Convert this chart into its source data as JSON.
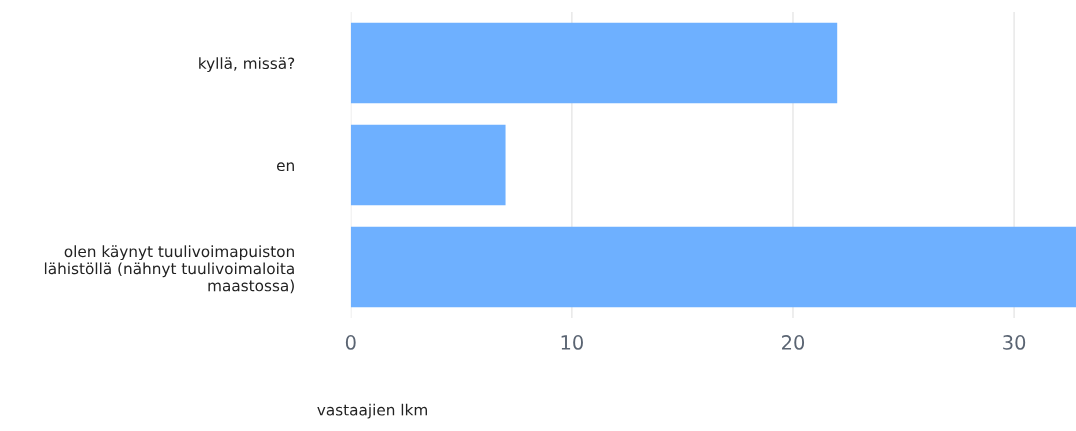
{
  "chart_data": {
    "type": "bar",
    "orientation": "horizontal",
    "xlabel": "vastaajien lkm",
    "categories": [
      "kyllä, missä?",
      "en",
      "olen käynyt tuulivoimapuiston\nlähistöllä (nähnyt tuulivoimaloita\nmaastossa)"
    ],
    "values": [
      22,
      7,
      32.8
    ],
    "color": "#6eb0ff",
    "xlim": [
      0,
      32.8
    ],
    "xticks": [
      0,
      10,
      20,
      30
    ],
    "grid": "x",
    "legend": false
  }
}
